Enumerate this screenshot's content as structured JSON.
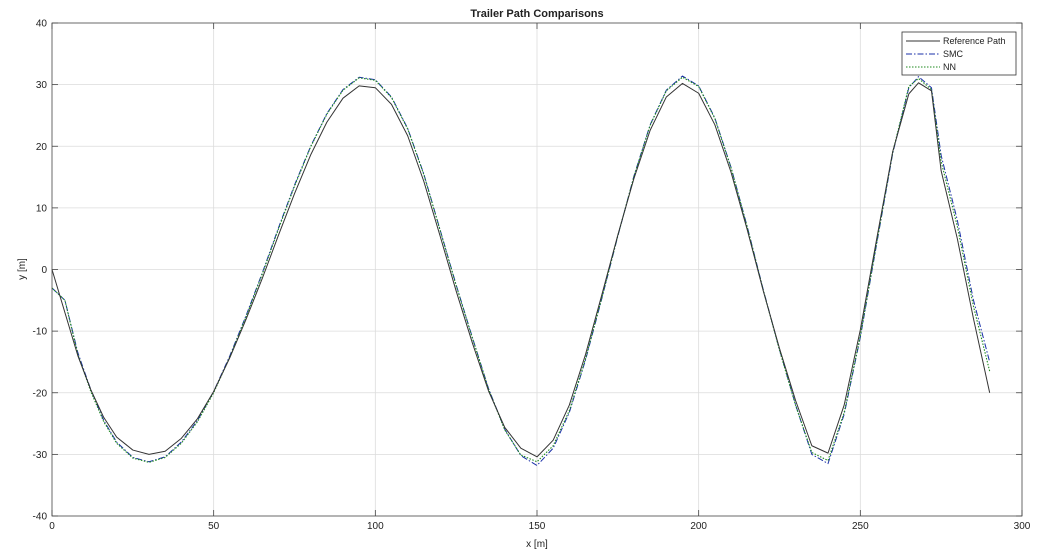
{
  "chart_data": {
    "type": "line",
    "title": "Trailer Path Comparisons",
    "xlabel": "x [m]",
    "ylabel": "y [m]",
    "xlim": [
      0,
      300
    ],
    "ylim": [
      -40,
      40
    ],
    "xticks": [
      0,
      50,
      100,
      150,
      200,
      250,
      300
    ],
    "yticks": [
      -40,
      -30,
      -20,
      -10,
      0,
      10,
      20,
      30,
      40
    ],
    "grid": true,
    "legend_position": "top-right",
    "colors": {
      "reference": "#333333",
      "smc": "#1a2fa8",
      "nn": "#1f8a1f"
    },
    "series": [
      {
        "name": "Reference Path",
        "style": "solid",
        "x": [
          0,
          4,
          8,
          12,
          16,
          20,
          25,
          30,
          35,
          40,
          45,
          50,
          55,
          60,
          65,
          70,
          75,
          80,
          85,
          90,
          95,
          100,
          105,
          110,
          115,
          120,
          125,
          130,
          135,
          140,
          145,
          150,
          155,
          160,
          165,
          170,
          175,
          180,
          185,
          190,
          195,
          200,
          205,
          210,
          215,
          220,
          225,
          230,
          235,
          240,
          245,
          250,
          255,
          260,
          265,
          268,
          272,
          275,
          280,
          285,
          290
        ],
        "y": [
          0,
          -7,
          -14,
          -19.5,
          -24,
          -27.2,
          -29.3,
          -30,
          -29.5,
          -27.4,
          -24.2,
          -19.8,
          -14.3,
          -8.1,
          -1.5,
          5.5,
          12.3,
          18.6,
          23.9,
          27.8,
          29.8,
          29.5,
          26.8,
          21.7,
          14.3,
          5.5,
          -3.5,
          -11.9,
          -19.7,
          -25.6,
          -29,
          -30.4,
          -27.7,
          -22,
          -13.8,
          -4.2,
          5.6,
          14.8,
          22.6,
          28,
          30.2,
          28.6,
          23.5,
          15.8,
          6.5,
          -3.5,
          -12.8,
          -21.3,
          -28.6,
          -29.8,
          -22,
          -9.8,
          4.8,
          19.1,
          28.5,
          30.3,
          29,
          16,
          5,
          -8,
          -20
        ]
      },
      {
        "name": "SMC",
        "style": "dashdot",
        "x": [
          0,
          4,
          8,
          12,
          16,
          20,
          25,
          30,
          35,
          40,
          45,
          50,
          55,
          60,
          65,
          70,
          75,
          80,
          85,
          90,
          95,
          100,
          105,
          110,
          115,
          120,
          125,
          130,
          135,
          140,
          145,
          150,
          155,
          160,
          165,
          170,
          175,
          180,
          185,
          190,
          195,
          200,
          205,
          210,
          215,
          220,
          225,
          230,
          235,
          240,
          245,
          250,
          255,
          260,
          265,
          268,
          272,
          275,
          280,
          285,
          290
        ],
        "y": [
          -3,
          -5,
          -13.5,
          -19.5,
          -24.5,
          -28,
          -30.5,
          -31.2,
          -30.4,
          -28,
          -24.5,
          -19.8,
          -14,
          -7.5,
          -0.6,
          6.7,
          13.7,
          20,
          25.3,
          29.2,
          31.2,
          30.8,
          28,
          22.9,
          15.5,
          6.5,
          -2.5,
          -11,
          -19.3,
          -25.9,
          -30.2,
          -31.8,
          -29,
          -23.2,
          -14.7,
          -4.8,
          5.4,
          15.2,
          23.5,
          29.1,
          31.4,
          29.8,
          24.6,
          16.6,
          7,
          -3.3,
          -13,
          -22,
          -30,
          -31.5,
          -23.5,
          -11,
          4,
          18.8,
          29.5,
          31.3,
          29.5,
          18.5,
          8,
          -5,
          -15
        ]
      },
      {
        "name": "NN",
        "style": "dotted",
        "x": [
          0,
          4,
          8,
          12,
          16,
          20,
          25,
          30,
          35,
          40,
          45,
          50,
          55,
          60,
          65,
          70,
          75,
          80,
          85,
          90,
          95,
          100,
          105,
          110,
          115,
          120,
          125,
          130,
          135,
          140,
          145,
          150,
          155,
          160,
          165,
          170,
          175,
          180,
          185,
          190,
          195,
          200,
          205,
          210,
          215,
          220,
          225,
          230,
          235,
          240,
          245,
          250,
          255,
          260,
          265,
          268,
          272,
          275,
          280,
          285,
          290
        ],
        "y": [
          -3,
          -5,
          -13.8,
          -19.8,
          -24.7,
          -28.2,
          -30.6,
          -31.3,
          -30.5,
          -28.2,
          -24.7,
          -20,
          -14.2,
          -7.7,
          -0.8,
          6.5,
          13.5,
          19.9,
          25.2,
          29.1,
          31.1,
          30.7,
          27.9,
          22.8,
          15.4,
          6.4,
          -2.6,
          -11.1,
          -19.4,
          -26,
          -30.1,
          -31.2,
          -28.6,
          -22.9,
          -14.5,
          -4.7,
          5.5,
          15.1,
          23.4,
          29,
          31.2,
          29.7,
          24.5,
          16.5,
          6.9,
          -3.4,
          -13.1,
          -22.1,
          -29.7,
          -31,
          -23.2,
          -10.8,
          4.2,
          19,
          29.7,
          31,
          29.2,
          17.5,
          7,
          -6,
          -16.5
        ]
      }
    ]
  }
}
